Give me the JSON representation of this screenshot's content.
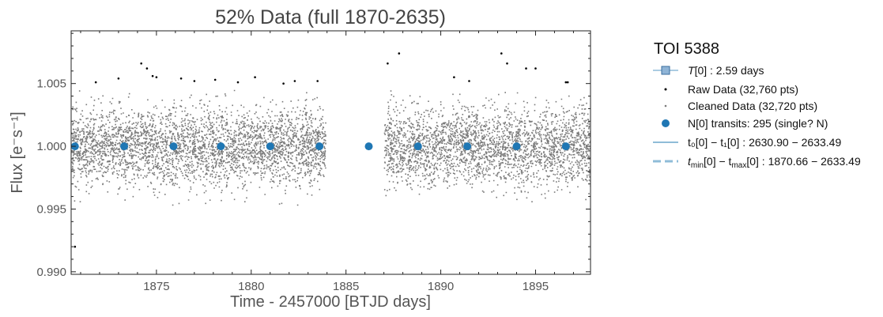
{
  "chart_data": {
    "type": "scatter",
    "title": "52% Data (full 1870-2635)",
    "xlabel": "Time - 2457000 [BTJD days]",
    "ylabel": "Flux [e⁻s⁻¹]",
    "xlim": [
      1870.5,
      1897.9
    ],
    "ylim": [
      0.9898,
      1.0092
    ],
    "x_ticks": [
      1875,
      1880,
      1885,
      1890,
      1895
    ],
    "y_ticks": [
      0.99,
      0.995,
      1.0,
      1.005
    ],
    "y_tick_labels": [
      "0.990",
      "0.995",
      "1.000",
      "1.005"
    ],
    "grid": false,
    "legend_position": "outside-right",
    "colors": {
      "transit": "#1f77b4",
      "cleaned": "#7a7a7a",
      "raw": "#000000",
      "line": "#8fbcd8"
    },
    "cleaned_data": {
      "segments": [
        [
          1870.5,
          1883.9
        ],
        [
          1887.0,
          1897.9
        ]
      ],
      "center": 1.0,
      "typical_scatter": 0.0015
    },
    "transit_points": {
      "x": [
        1870.7,
        1873.3,
        1875.9,
        1878.4,
        1881.0,
        1883.6,
        1886.2,
        1888.8,
        1891.4,
        1894.0,
        1896.6
      ],
      "y": [
        1.0,
        1.0,
        1.0,
        1.0,
        1.0,
        1.0,
        1.0,
        1.0,
        1.0,
        1.0,
        1.0
      ]
    },
    "raw_outliers": {
      "x": [
        1871.8,
        1873.0,
        1874.2,
        1874.5,
        1874.8,
        1875.0,
        1876.3,
        1877.0,
        1878.1,
        1879.3,
        1880.2,
        1881.7,
        1882.3,
        1883.5,
        1887.2,
        1887.8,
        1890.7,
        1891.5,
        1893.2,
        1893.5,
        1894.5,
        1895.0,
        1896.6,
        1896.7,
        1870.7
      ],
      "y": [
        1.0051,
        1.0054,
        1.0066,
        1.0062,
        1.0056,
        1.0055,
        1.0054,
        1.0052,
        1.0053,
        1.0051,
        1.0055,
        1.005,
        1.0052,
        1.0052,
        1.0066,
        1.0074,
        1.0055,
        1.0052,
        1.0074,
        1.0066,
        1.0062,
        1.0062,
        1.0051,
        1.0051,
        0.992
      ]
    },
    "legend": {
      "title": "TOI 5388",
      "items": [
        {
          "label_main": "T",
          "label_sub": "[0]",
          "label_rest": " : 2.59 days",
          "marker": "square-line"
        },
        {
          "label": "Raw Data (32,760 pts)",
          "marker": "small-dot-black"
        },
        {
          "label": "Cleaned Data (32,720 pts)",
          "marker": "small-dot-gray"
        },
        {
          "label": "N[0] transits: 295 (single? N)",
          "marker": "big-dot-blue"
        },
        {
          "label_t0": "t₀[0] − t₁[0] : 2630.90 − 2633.49",
          "marker": "solid-line"
        },
        {
          "label_tmin": "t",
          "label_tmin_sub": "min",
          "label_mid": "[0] − t",
          "label_tmax_sub": "max",
          "label_end": "[0] : 1870.66 − 2633.49",
          "marker": "dashed-line"
        }
      ]
    }
  }
}
